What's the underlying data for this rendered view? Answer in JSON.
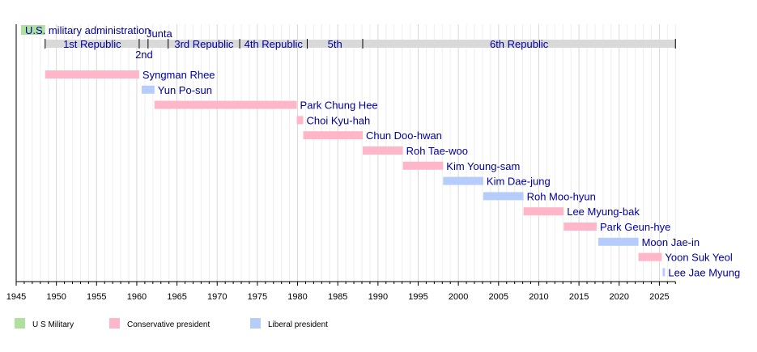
{
  "chart_data": {
    "type": "timeline",
    "xlim": [
      1945,
      2027
    ],
    "grid": true,
    "xticks": [
      "1945",
      "1950",
      "1955",
      "1960",
      "1965",
      "1970",
      "1975",
      "1980",
      "1985",
      "1990",
      "1995",
      "2000",
      "2005",
      "2010",
      "2015",
      "2020",
      "2025"
    ],
    "colors": {
      "military": "#b0e0a0",
      "conservative": "#ffb6c9",
      "liberal": "#b6cdfc",
      "era": "#d9d9d9",
      "text": "#0000a0"
    },
    "eras": [
      {
        "label": "U.S. military administration",
        "start": 1945.6,
        "end": 1948.6,
        "kind": "military"
      },
      {
        "label": "1st Republic",
        "start": 1948.6,
        "end": 1960.3,
        "kind": "era"
      },
      {
        "label": "2nd",
        "start": 1960.3,
        "end": 1961.4,
        "kind": "era"
      },
      {
        "label": "Junta",
        "start": 1961.4,
        "end": 1963.9,
        "kind": "era"
      },
      {
        "label": "3rd Republic",
        "start": 1963.9,
        "end": 1972.8,
        "kind": "era"
      },
      {
        "label": "4th Republic",
        "start": 1972.8,
        "end": 1981.2,
        "kind": "era"
      },
      {
        "label": "5th",
        "start": 1981.2,
        "end": 1988.1,
        "kind": "era"
      },
      {
        "label": "6th Republic",
        "start": 1988.1,
        "end": 2027,
        "kind": "era"
      }
    ],
    "presidents": [
      {
        "name": "Syngman Rhee",
        "start": 1948.6,
        "end": 1960.3,
        "party": "conservative"
      },
      {
        "name": "Yun Po-sun",
        "start": 1960.6,
        "end": 1962.2,
        "party": "liberal"
      },
      {
        "name": "Park Chung Hee",
        "start": 1962.2,
        "end": 1979.9,
        "party": "conservative"
      },
      {
        "name": "Choi Kyu-hah",
        "start": 1979.9,
        "end": 1980.7,
        "party": "conservative"
      },
      {
        "name": "Chun Doo-hwan",
        "start": 1980.7,
        "end": 1988.1,
        "party": "conservative"
      },
      {
        "name": "Roh Tae-woo",
        "start": 1988.1,
        "end": 1993.1,
        "party": "conservative"
      },
      {
        "name": "Kim Young-sam",
        "start": 1993.1,
        "end": 1998.1,
        "party": "conservative"
      },
      {
        "name": "Kim Dae-jung",
        "start": 1998.1,
        "end": 2003.1,
        "party": "liberal"
      },
      {
        "name": "Roh Moo-hyun",
        "start": 2003.1,
        "end": 2008.1,
        "party": "liberal"
      },
      {
        "name": "Lee Myung-bak",
        "start": 2008.1,
        "end": 2013.1,
        "party": "conservative"
      },
      {
        "name": "Park Geun-hye",
        "start": 2013.1,
        "end": 2017.2,
        "party": "conservative"
      },
      {
        "name": "Moon Jae-in",
        "start": 2017.4,
        "end": 2022.4,
        "party": "liberal"
      },
      {
        "name": "Yoon Suk Yeol",
        "start": 2022.4,
        "end": 2025.3,
        "party": "conservative"
      },
      {
        "name": "Lee Jae Myung",
        "start": 2025.4,
        "end": 2025.7,
        "party": "liberal"
      }
    ],
    "legend": [
      {
        "label": "U S Military",
        "kind": "military"
      },
      {
        "label": "Conservative president",
        "kind": "conservative"
      },
      {
        "label": "Liberal president",
        "kind": "liberal"
      }
    ],
    "legend_placement": "bottom-left"
  }
}
